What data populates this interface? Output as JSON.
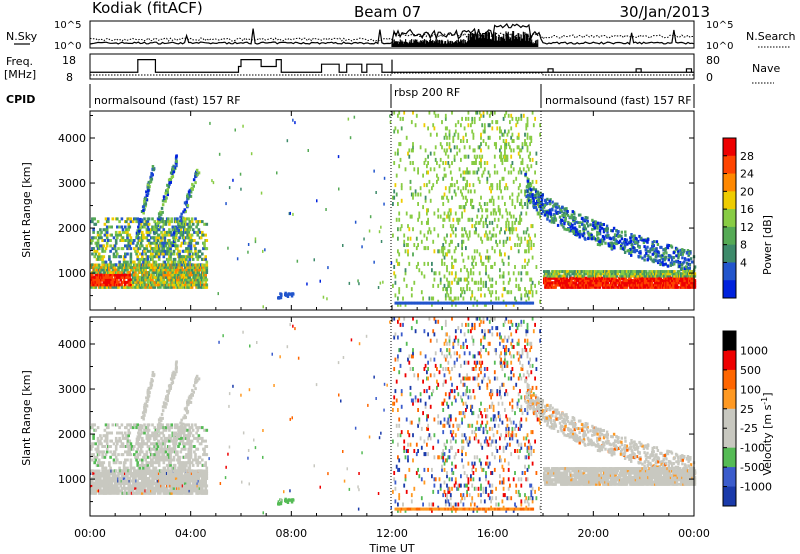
{
  "header": {
    "station": "Kodiak (fitACF)",
    "beam": "Beam 07",
    "date": "30/Jan/2013"
  },
  "noise_panel": {
    "left_label": "N.Sky",
    "right_label": "N.Search",
    "left_ticks": [
      "10^5",
      "10^0"
    ],
    "right_ticks": [
      "10^5",
      "10^0"
    ],
    "scale": "log"
  },
  "freq_panel": {
    "left_label_1": "Freq.",
    "left_label_2": "[MHz]",
    "left_ticks": [
      "18",
      "8"
    ],
    "right_label": "Nave",
    "right_ticks": [
      "80",
      "0"
    ]
  },
  "cpid": {
    "label": "CPID",
    "segments": [
      {
        "name": "normalsound (fast) 157 RF",
        "start": 0,
        "end": 12
      },
      {
        "name": "rbsp 200 RF",
        "start": 12,
        "end": 18
      },
      {
        "name": "normalsound (fast) 157 RF",
        "start": 18,
        "end": 24
      }
    ]
  },
  "power_colorbar": {
    "label": "Power [dB]",
    "ticks": [
      "28",
      "24",
      "20",
      "16",
      "12",
      "8",
      "4"
    ],
    "colors": [
      "#0022dd",
      "#2255cc",
      "#3d8a6a",
      "#55aa55",
      "#88cc44",
      "#eecc00",
      "#ff8800",
      "#ff4400",
      "#ee0000"
    ]
  },
  "velocity_colorbar": {
    "label": "Velocity [m s",
    "label_sup": "-1",
    "label_end": "]",
    "ticks": [
      "1000",
      "500",
      "100",
      "25",
      "-25",
      "-100",
      "-500",
      "-1000"
    ],
    "colors": [
      "#1a3aaa",
      "#3b5ccc",
      "#55bb55",
      "#c8c8c0",
      "#c8c8c0",
      "#ff9922",
      "#ff6600",
      "#ee0000"
    ]
  },
  "x_axis": {
    "label": "Time UT",
    "ticks": [
      "00:00",
      "04:00",
      "08:00",
      "12:00",
      "16:00",
      "20:00",
      "00:00"
    ]
  },
  "chart_data": [
    {
      "type": "heatmap",
      "title": "Power",
      "xlabel": "Time UT",
      "ylabel": "Slant Range [km]",
      "xlim": [
        0,
        24
      ],
      "ylim": [
        180,
        4600
      ],
      "yticks": [
        1000,
        2000,
        3000,
        4000
      ],
      "colorbar": {
        "label": "Power [dB]",
        "range": [
          0,
          32
        ]
      },
      "features": [
        {
          "name": "morning band",
          "t": [
            0.0,
            4.6
          ],
          "range_km": [
            650,
            1100
          ],
          "power_db": [
            16,
            30
          ]
        },
        {
          "name": "morning arcs",
          "t": [
            0.0,
            4.6
          ],
          "range_km": [
            1100,
            3600
          ],
          "power_db": [
            4,
            20
          ]
        },
        {
          "name": "rbsp scatter",
          "t": [
            12.0,
            17.9
          ],
          "range_km": [
            200,
            4600
          ],
          "power_db": [
            6,
            14
          ]
        },
        {
          "name": "evening band",
          "t": [
            18.0,
            24.0
          ],
          "range_km": [
            650,
            1000
          ],
          "power_db": [
            18,
            30
          ]
        },
        {
          "name": "evening arc",
          "t": [
            17.2,
            24.0
          ],
          "range_km": [
            1000,
            3200
          ],
          "power_db": [
            4,
            16
          ]
        }
      ]
    },
    {
      "type": "heatmap",
      "title": "Velocity",
      "xlabel": "Time UT",
      "ylabel": "Slant Range [km]",
      "xlim": [
        0,
        24
      ],
      "ylim": [
        180,
        4600
      ],
      "yticks": [
        1000,
        2000,
        3000,
        4000
      ],
      "colorbar": {
        "label": "Velocity [m s-1]",
        "range": [
          -1000,
          1000
        ]
      },
      "features": [
        {
          "name": "morning echoes",
          "t": [
            0.0,
            4.6
          ],
          "range_km": [
            650,
            3600
          ],
          "velocity": [
            -25,
            25
          ]
        },
        {
          "name": "08:00 patch",
          "t": [
            7.4,
            8.1
          ],
          "range_km": [
            400,
            500
          ],
          "velocity": [
            100,
            500
          ]
        },
        {
          "name": "rbsp scatter",
          "t": [
            12.0,
            17.9
          ],
          "range_km": [
            200,
            4600
          ],
          "velocity": [
            -1000,
            1000
          ]
        },
        {
          "name": "evening echoes",
          "t": [
            17.2,
            24.0
          ],
          "range_km": [
            650,
            3200
          ],
          "velocity": [
            -100,
            25
          ]
        }
      ]
    },
    {
      "type": "line",
      "title": "Frequency",
      "xlim": [
        0,
        24
      ],
      "ylim": [
        8,
        18
      ],
      "x": [
        0,
        1.7,
        1.9,
        2.3,
        2.6,
        5.6,
        5.9,
        6.0,
        6.6,
        6.8,
        7.4,
        7.6,
        9.0,
        9.2,
        9.7,
        9.9,
        10.2,
        10.4,
        10.8,
        11.0,
        11.4,
        11.6,
        12.0,
        12.0,
        24.0
      ],
      "series": [
        {
          "values": [
            10.5,
            10.5,
            16,
            16,
            10.5,
            10.5,
            13,
            16,
            16,
            13,
            16,
            10.5,
            10.5,
            14,
            14,
            10.5,
            14,
            14,
            10.5,
            14,
            14,
            10.5,
            16,
            10.5,
            10.5
          ]
        }
      ]
    }
  ]
}
